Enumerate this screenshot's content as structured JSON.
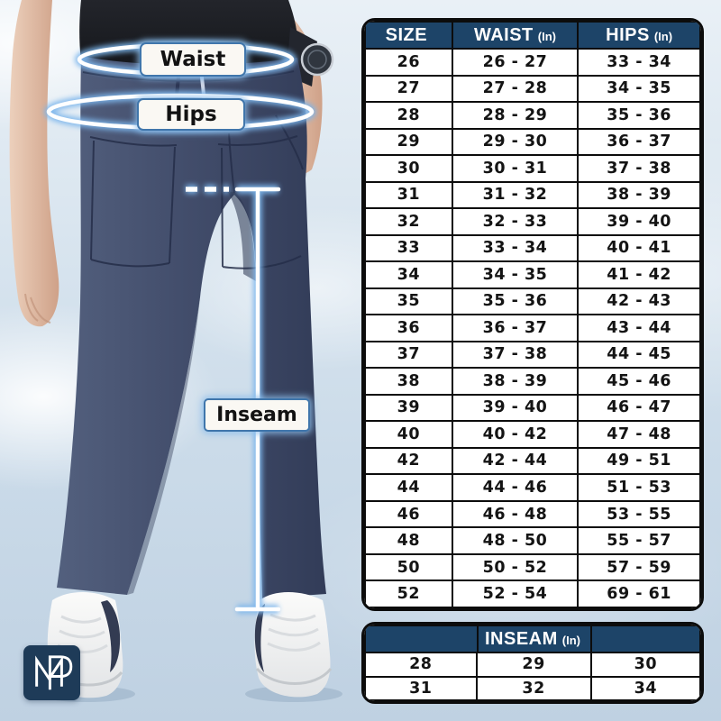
{
  "annotations": {
    "waist_label": "Waist",
    "hips_label": "Hips",
    "inseam_label": "Inseam"
  },
  "logo": {
    "monogram": "MP"
  },
  "colors": {
    "header_navy": "#1d4468",
    "table_border": "#0c0c0c",
    "accent_blue": "#4076ab",
    "pants_navy": "#424c68",
    "sky_blue": "#cbdbe9",
    "logo_navy": "#1e3b58"
  },
  "chart_data": [
    {
      "type": "table",
      "title": "",
      "columns": [
        {
          "label": "SIZE",
          "unit": ""
        },
        {
          "label": "WAIST",
          "unit": "(In)"
        },
        {
          "label": "HIPS",
          "unit": "(In)"
        }
      ],
      "rows": [
        [
          "26",
          "26 - 27",
          "33 - 34"
        ],
        [
          "27",
          "27 - 28",
          "34 - 35"
        ],
        [
          "28",
          "28 - 29",
          "35 - 36"
        ],
        [
          "29",
          "29 - 30",
          "36 - 37"
        ],
        [
          "30",
          "30 - 31",
          "37 - 38"
        ],
        [
          "31",
          "31 - 32",
          "38 - 39"
        ],
        [
          "32",
          "32 - 33",
          "39 - 40"
        ],
        [
          "33",
          "33 - 34",
          "40 - 41"
        ],
        [
          "34",
          "34 - 35",
          "41 - 42"
        ],
        [
          "35",
          "35 - 36",
          "42 - 43"
        ],
        [
          "36",
          "36 - 37",
          "43 - 44"
        ],
        [
          "37",
          "37 - 38",
          "44 - 45"
        ],
        [
          "38",
          "38 - 39",
          "45 - 46"
        ],
        [
          "39",
          "39 - 40",
          "46 - 47"
        ],
        [
          "40",
          "40 - 42",
          "47 - 48"
        ],
        [
          "42",
          "42 - 44",
          "49 - 51"
        ],
        [
          "44",
          "44 - 46",
          "51 - 53"
        ],
        [
          "46",
          "46 - 48",
          "53 - 55"
        ],
        [
          "48",
          "48 - 50",
          "55 - 57"
        ],
        [
          "50",
          "50 - 52",
          "57 - 59"
        ],
        [
          "52",
          "52 - 54",
          "69 - 61"
        ]
      ]
    },
    {
      "type": "table",
      "title": "INSEAM",
      "title_unit": "(In)",
      "rows": [
        [
          "28",
          "29",
          "30"
        ],
        [
          "31",
          "32",
          "34"
        ]
      ]
    }
  ]
}
